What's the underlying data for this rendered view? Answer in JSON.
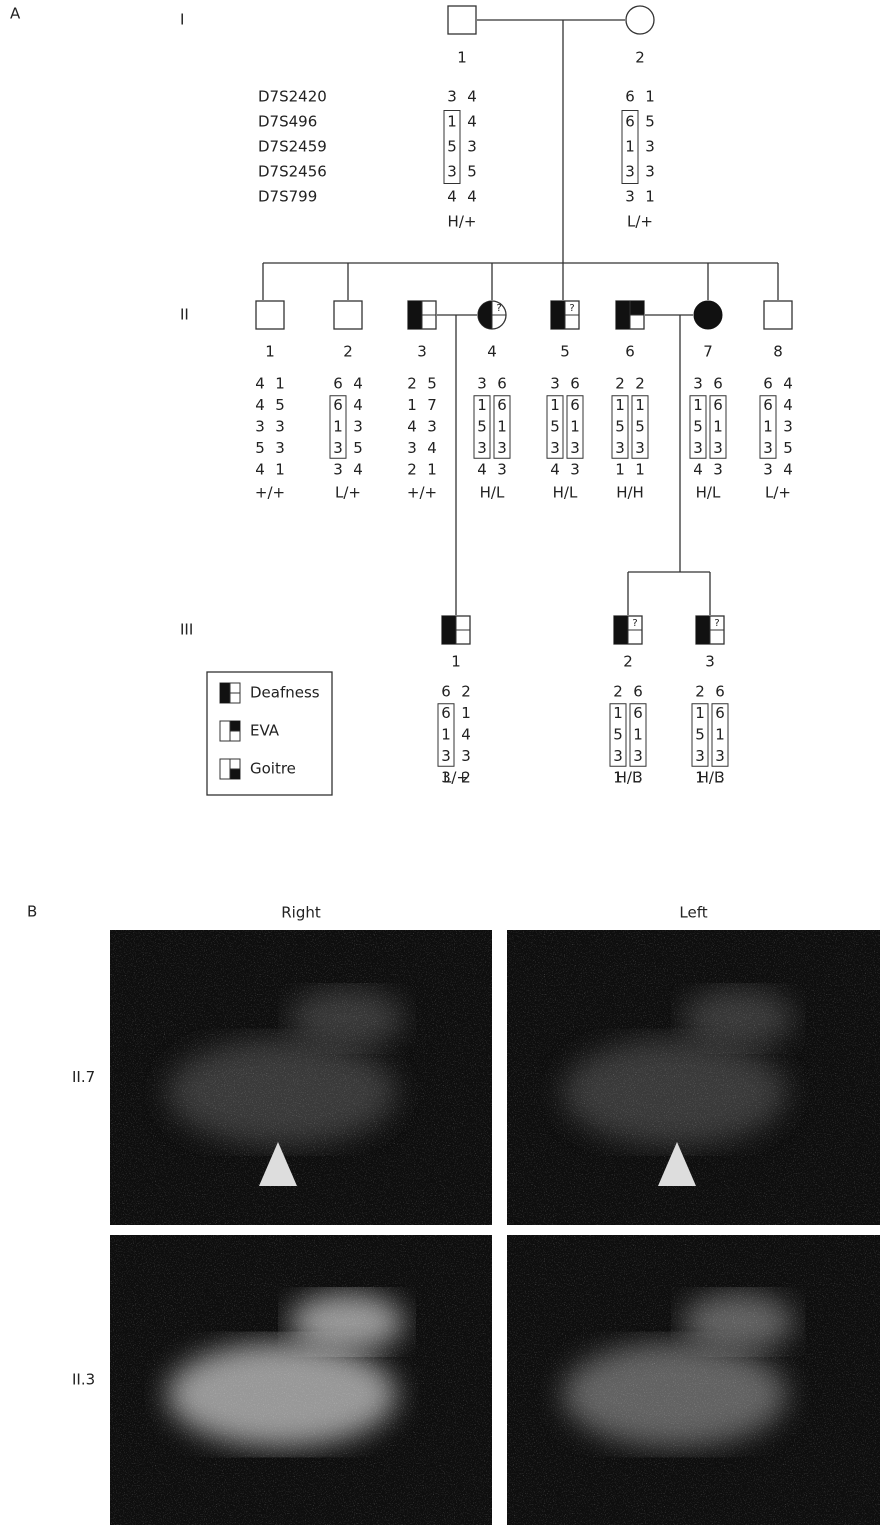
{
  "panel_a": {
    "label": "A",
    "markers": [
      "D7S2420",
      "D7S496",
      "D7S2459",
      "D7S2456",
      "D7S799"
    ],
    "generations": [
      {
        "label": "I",
        "individuals": [
          {
            "id": "1",
            "haplotype": [
              [
                "3",
                "4"
              ],
              [
                "1",
                "4"
              ],
              [
                "5",
                "3"
              ],
              [
                "3",
                "5"
              ],
              [
                "4",
                "4"
              ]
            ],
            "genotype": "H/+"
          },
          {
            "id": "2",
            "haplotype": [
              [
                "6",
                "1"
              ],
              [
                "6",
                "5"
              ],
              [
                "1",
                "3"
              ],
              [
                "3",
                "3"
              ],
              [
                "3",
                "1"
              ]
            ],
            "genotype": "L/+"
          }
        ]
      },
      {
        "label": "II",
        "individuals": [
          {
            "id": "1",
            "haplotype": [
              [
                "4",
                "1"
              ],
              [
                "4",
                "5"
              ],
              [
                "3",
                "3"
              ],
              [
                "5",
                "3"
              ],
              [
                "4",
                "1"
              ]
            ],
            "genotype": "+/+"
          },
          {
            "id": "2",
            "haplotype": [
              [
                "6",
                "4"
              ],
              [
                "6",
                "4"
              ],
              [
                "1",
                "3"
              ],
              [
                "3",
                "5"
              ],
              [
                "3",
                "4"
              ]
            ],
            "genotype": "L/+"
          },
          {
            "id": "3",
            "haplotype": [
              [
                "2",
                "5"
              ],
              [
                "1",
                "7"
              ],
              [
                "4",
                "3"
              ],
              [
                "3",
                "4"
              ],
              [
                "2",
                "1"
              ]
            ],
            "genotype": "+/+"
          },
          {
            "id": "4",
            "note": "?",
            "haplotype": [
              [
                "3",
                "6"
              ],
              [
                "1",
                "6"
              ],
              [
                "5",
                "1"
              ],
              [
                "3",
                "3"
              ],
              [
                "4",
                "3"
              ]
            ],
            "genotype": "H/L"
          },
          {
            "id": "5",
            "note": "?",
            "haplotype": [
              [
                "3",
                "6"
              ],
              [
                "1",
                "6"
              ],
              [
                "5",
                "1"
              ],
              [
                "3",
                "3"
              ],
              [
                "4",
                "3"
              ]
            ],
            "genotype": "H/L"
          },
          {
            "id": "6",
            "haplotype": [
              [
                "2",
                "2"
              ],
              [
                "1",
                "1"
              ],
              [
                "5",
                "5"
              ],
              [
                "3",
                "3"
              ],
              [
                "1",
                "1"
              ]
            ],
            "genotype": "H/H"
          },
          {
            "id": "7",
            "haplotype": [
              [
                "3",
                "6"
              ],
              [
                "1",
                "6"
              ],
              [
                "5",
                "1"
              ],
              [
                "3",
                "3"
              ],
              [
                "4",
                "3"
              ]
            ],
            "genotype": "H/L"
          },
          {
            "id": "8",
            "haplotype": [
              [
                "6",
                "4"
              ],
              [
                "6",
                "4"
              ],
              [
                "1",
                "3"
              ],
              [
                "3",
                "5"
              ],
              [
                "3",
                "4"
              ]
            ],
            "genotype": "L/+"
          }
        ]
      },
      {
        "label": "III",
        "individuals": [
          {
            "id": "1",
            "haplotype": [
              [
                "6",
                "2"
              ],
              [
                "6",
                "1"
              ],
              [
                "1",
                "4"
              ],
              [
                "3",
                "3"
              ],
              [
                "3",
                "2"
              ]
            ],
            "genotype": "L/+"
          },
          {
            "id": "2",
            "note": "?",
            "haplotype": [
              [
                "2",
                "6"
              ],
              [
                "1",
                "6"
              ],
              [
                "5",
                "1"
              ],
              [
                "3",
                "3"
              ],
              [
                "1",
                "3"
              ]
            ],
            "genotype": "H/L"
          },
          {
            "id": "3",
            "note": "?",
            "haplotype": [
              [
                "2",
                "6"
              ],
              [
                "1",
                "6"
              ],
              [
                "5",
                "1"
              ],
              [
                "3",
                "3"
              ],
              [
                "1",
                "3"
              ]
            ],
            "genotype": "H/L"
          }
        ]
      }
    ],
    "legend": [
      "Deafness",
      "EVA",
      "Goitre"
    ]
  },
  "panel_b": {
    "label": "B",
    "columns": [
      "Right",
      "Left"
    ],
    "rows": [
      "II.7",
      "II.3"
    ]
  }
}
